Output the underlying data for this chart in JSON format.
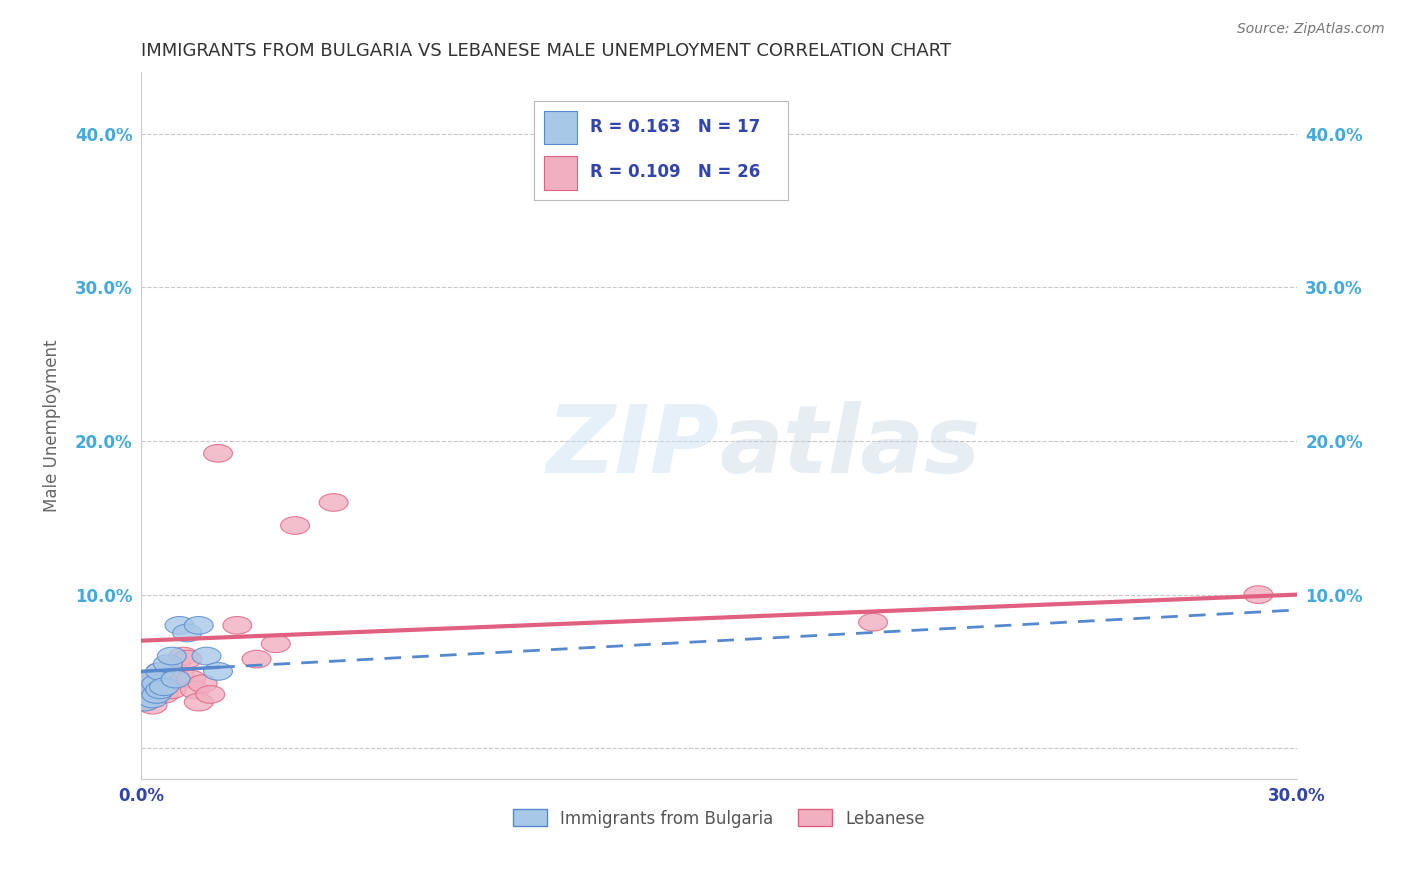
{
  "title": "IMMIGRANTS FROM BULGARIA VS LEBANESE MALE UNEMPLOYMENT CORRELATION CHART",
  "source": "Source: ZipAtlas.com",
  "ylabel": "Male Unemployment",
  "xlim": [
    0.0,
    0.3
  ],
  "ylim": [
    -0.02,
    0.44
  ],
  "xticks": [
    0.0,
    0.05,
    0.1,
    0.15,
    0.2,
    0.25,
    0.3
  ],
  "yticks": [
    0.0,
    0.1,
    0.2,
    0.3,
    0.4
  ],
  "bg_color": "#ffffff",
  "grid_color": "#c8c8c8",
  "watermark": "ZIPatlas",
  "legend_bottom": [
    "Immigrants from Bulgaria",
    "Lebanese"
  ],
  "legend_bottom_colors": [
    "#a8c8e8",
    "#f0b0c0"
  ],
  "bulgaria_color": "#a8c8e8",
  "lebanon_color": "#f0b0c0",
  "bulgaria_edge_color": "#5588cc",
  "lebanon_edge_color": "#e06080",
  "bulgaria_trend_color": "#5588cc",
  "lebanon_trend_color": "#e06080",
  "title_color": "#333333",
  "tick_color_x": "#3344aa",
  "tick_color_y": "#44aadd",
  "bulgaria_R": 0.163,
  "bulgaria_N": 17,
  "lebanon_R": 0.109,
  "lebanon_N": 26,
  "bulgaria_points": [
    [
      0.001,
      0.03
    ],
    [
      0.002,
      0.038
    ],
    [
      0.003,
      0.032
    ],
    [
      0.003,
      0.045
    ],
    [
      0.004,
      0.035
    ],
    [
      0.004,
      0.042
    ],
    [
      0.005,
      0.038
    ],
    [
      0.005,
      0.05
    ],
    [
      0.006,
      0.04
    ],
    [
      0.007,
      0.055
    ],
    [
      0.008,
      0.06
    ],
    [
      0.009,
      0.045
    ],
    [
      0.01,
      0.08
    ],
    [
      0.012,
      0.075
    ],
    [
      0.015,
      0.08
    ],
    [
      0.017,
      0.06
    ],
    [
      0.02,
      0.05
    ]
  ],
  "lebanon_points": [
    [
      0.001,
      0.03
    ],
    [
      0.002,
      0.035
    ],
    [
      0.002,
      0.04
    ],
    [
      0.003,
      0.028
    ],
    [
      0.004,
      0.045
    ],
    [
      0.005,
      0.05
    ],
    [
      0.006,
      0.035
    ],
    [
      0.007,
      0.042
    ],
    [
      0.008,
      0.038
    ],
    [
      0.009,
      0.055
    ],
    [
      0.01,
      0.048
    ],
    [
      0.011,
      0.06
    ],
    [
      0.012,
      0.058
    ],
    [
      0.013,
      0.045
    ],
    [
      0.014,
      0.038
    ],
    [
      0.015,
      0.03
    ],
    [
      0.016,
      0.042
    ],
    [
      0.018,
      0.035
    ],
    [
      0.02,
      0.192
    ],
    [
      0.025,
      0.08
    ],
    [
      0.03,
      0.058
    ],
    [
      0.035,
      0.068
    ],
    [
      0.04,
      0.145
    ],
    [
      0.05,
      0.16
    ],
    [
      0.19,
      0.082
    ],
    [
      0.29,
      0.1
    ]
  ]
}
